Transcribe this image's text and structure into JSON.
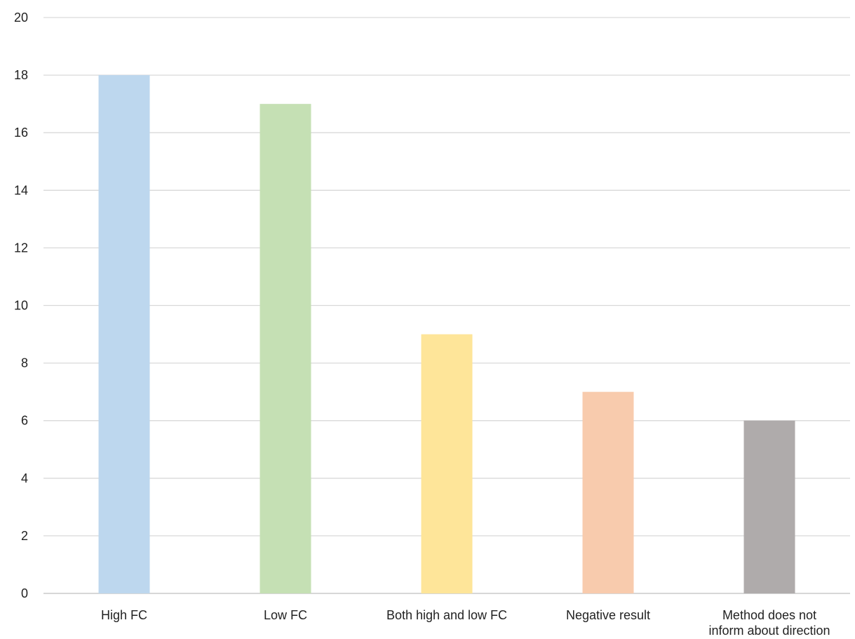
{
  "chart_data": {
    "type": "bar",
    "title": "",
    "xlabel": "",
    "ylabel": "",
    "ylim": [
      0,
      20
    ],
    "ytick_step": 2,
    "grid": true,
    "legend": "none",
    "categories": [
      [
        "High FC"
      ],
      [
        "Low FC"
      ],
      [
        "Both high and low FC"
      ],
      [
        "Negative result"
      ],
      [
        "Method does not",
        "inform about direction"
      ]
    ],
    "values": [
      18,
      17,
      9,
      7,
      6
    ],
    "colors": [
      "#bdd7ee",
      "#c5e0b4",
      "#fee599",
      "#f8cbad",
      "#afabab"
    ]
  }
}
